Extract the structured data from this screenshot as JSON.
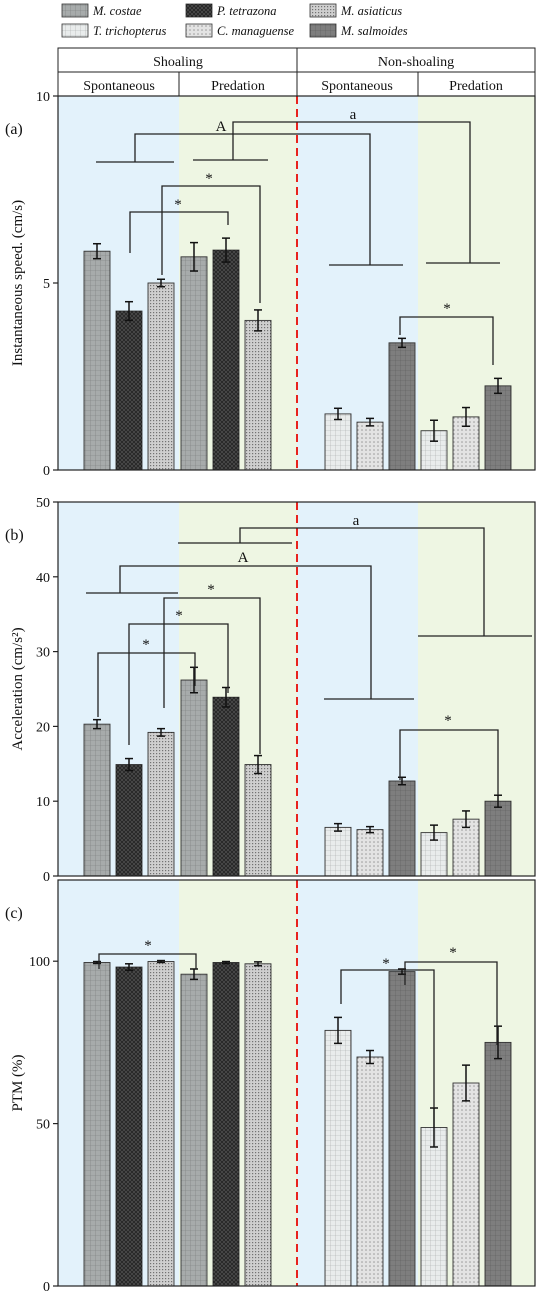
{
  "legend": {
    "entries": [
      {
        "label": "M. costae",
        "fill": "#a7abab",
        "pattern": "grid"
      },
      {
        "label": "P. tetrazona",
        "fill": "#4d4d4d",
        "pattern": "dark"
      },
      {
        "label": "M. asiaticus",
        "fill": "#cfcfcf",
        "pattern": "dense"
      },
      {
        "label": "T. trichopterus",
        "fill": "#e9ecec",
        "pattern": "grid"
      },
      {
        "label": "C. managuense",
        "fill": "#e3e3e3",
        "pattern": "dots"
      },
      {
        "label": "M. salmoides",
        "fill": "#7e7e7e",
        "pattern": "grid"
      }
    ]
  },
  "header": {
    "groups": [
      "Shoaling",
      "Non-shoaling"
    ],
    "conditions": [
      "Spontaneous",
      "Predation",
      "Spontaneous",
      "Predation"
    ]
  },
  "colors": {
    "spontaneous_bg": "#e3f2fb",
    "predation_bg": "#eef6e3",
    "divider": "#e8231d",
    "axis": "#222222"
  },
  "chart_data": [
    {
      "type": "bar",
      "panel_label": "(a)",
      "ylabel": "Instantaneous speed. (cm/s)",
      "ylim": [
        0,
        10
      ],
      "yticks": [
        0,
        5,
        10
      ],
      "groups": [
        "Shoaling Spontaneous",
        "Shoaling Predation",
        "Non-shoaling Spontaneous",
        "Non-shoaling Predation"
      ],
      "bars": [
        {
          "species": "M. costae",
          "condition": "Shoaling Spontaneous",
          "value": 5.85,
          "error": 0.2
        },
        {
          "species": "P. tetrazona",
          "condition": "Shoaling Spontaneous",
          "value": 4.25,
          "error": 0.25
        },
        {
          "species": "M. asiaticus",
          "condition": "Shoaling Spontaneous",
          "value": 5.0,
          "error": 0.1
        },
        {
          "species": "M. costae",
          "condition": "Shoaling Predation",
          "value": 5.7,
          "error": 0.38
        },
        {
          "species": "P. tetrazona",
          "condition": "Shoaling Predation",
          "value": 5.88,
          "error": 0.32
        },
        {
          "species": "M. asiaticus",
          "condition": "Shoaling Predation",
          "value": 4.0,
          "error": 0.28
        },
        {
          "species": "T. trichopterus",
          "condition": "Non-shoaling Spontaneous",
          "value": 1.5,
          "error": 0.15
        },
        {
          "species": "C. managuense",
          "condition": "Non-shoaling Spontaneous",
          "value": 1.28,
          "error": 0.1
        },
        {
          "species": "M. salmoides",
          "condition": "Non-shoaling Spontaneous",
          "value": 3.4,
          "error": 0.12
        },
        {
          "species": "T. trichopterus",
          "condition": "Non-shoaling Predation",
          "value": 1.05,
          "error": 0.28
        },
        {
          "species": "C. managuense",
          "condition": "Non-shoaling Predation",
          "value": 1.42,
          "error": 0.25
        },
        {
          "species": "M. salmoides",
          "condition": "Non-shoaling Predation",
          "value": 2.25,
          "error": 0.2
        }
      ],
      "significance_labels": [
        "A",
        "a",
        "*",
        "*",
        "*"
      ]
    },
    {
      "type": "bar",
      "panel_label": "(b)",
      "ylabel": "Acceleration (cm/s²)",
      "ylim": [
        0,
        50
      ],
      "yticks": [
        0,
        10,
        20,
        30,
        40,
        50
      ],
      "groups": [
        "Shoaling Spontaneous",
        "Shoaling Predation",
        "Non-shoaling Spontaneous",
        "Non-shoaling Predation"
      ],
      "bars": [
        {
          "species": "M. costae",
          "condition": "Shoaling Spontaneous",
          "value": 20.3,
          "error": 0.6
        },
        {
          "species": "P. tetrazona",
          "condition": "Shoaling Spontaneous",
          "value": 14.9,
          "error": 0.8
        },
        {
          "species": "M. asiaticus",
          "condition": "Shoaling Spontaneous",
          "value": 19.2,
          "error": 0.5
        },
        {
          "species": "M. costae",
          "condition": "Shoaling Predation",
          "value": 26.2,
          "error": 1.7
        },
        {
          "species": "P. tetrazona",
          "condition": "Shoaling Predation",
          "value": 23.9,
          "error": 1.3
        },
        {
          "species": "M. asiaticus",
          "condition": "Shoaling Predation",
          "value": 14.9,
          "error": 1.2
        },
        {
          "species": "T. trichopterus",
          "condition": "Non-shoaling Spontaneous",
          "value": 6.5,
          "error": 0.5
        },
        {
          "species": "C. managuense",
          "condition": "Non-shoaling Spontaneous",
          "value": 6.2,
          "error": 0.4
        },
        {
          "species": "M. salmoides",
          "condition": "Non-shoaling Spontaneous",
          "value": 12.7,
          "error": 0.5
        },
        {
          "species": "T. trichopterus",
          "condition": "Non-shoaling Predation",
          "value": 5.8,
          "error": 1.0
        },
        {
          "species": "C. managuense",
          "condition": "Non-shoaling Predation",
          "value": 7.6,
          "error": 1.1
        },
        {
          "species": "M. salmoides",
          "condition": "Non-shoaling Predation",
          "value": 10.0,
          "error": 0.8
        }
      ],
      "significance_labels": [
        "a",
        "A",
        "*",
        "*",
        "*",
        "*"
      ]
    },
    {
      "type": "bar",
      "panel_label": "(c)",
      "ylabel": "PTM (%)",
      "ylim": [
        0,
        125
      ],
      "yticks": [
        0,
        50,
        100
      ],
      "groups": [
        "Shoaling Spontaneous",
        "Shoaling Predation",
        "Non-shoaling Spontaneous",
        "Non-shoaling Predation"
      ],
      "bars": [
        {
          "species": "M. costae",
          "condition": "Shoaling Spontaneous",
          "value": 99.6,
          "error": 0.3
        },
        {
          "species": "P. tetrazona",
          "condition": "Shoaling Spontaneous",
          "value": 98.2,
          "error": 1.0
        },
        {
          "species": "M. asiaticus",
          "condition": "Shoaling Spontaneous",
          "value": 99.9,
          "error": 0.3
        },
        {
          "species": "M. costae",
          "condition": "Shoaling Predation",
          "value": 96.0,
          "error": 1.6
        },
        {
          "species": "P. tetrazona",
          "condition": "Shoaling Predation",
          "value": 99.6,
          "error": 0.3
        },
        {
          "species": "M. asiaticus",
          "condition": "Shoaling Predation",
          "value": 99.2,
          "error": 0.6
        },
        {
          "species": "T. trichopterus",
          "condition": "Non-shoaling Spontaneous",
          "value": 78.7,
          "error": 4.0
        },
        {
          "species": "C. managuense",
          "condition": "Non-shoaling Spontaneous",
          "value": 70.5,
          "error": 2.0
        },
        {
          "species": "M. salmoides",
          "condition": "Non-shoaling Spontaneous",
          "value": 96.8,
          "error": 0.8
        },
        {
          "species": "T. trichopterus",
          "condition": "Non-shoaling Predation",
          "value": 48.8,
          "error": 6.0
        },
        {
          "species": "C. managuense",
          "condition": "Non-shoaling Predation",
          "value": 62.5,
          "error": 5.5
        },
        {
          "species": "M. salmoides",
          "condition": "Non-shoaling Predation",
          "value": 75.0,
          "error": 5.0
        }
      ],
      "significance_labels": [
        "*",
        "*",
        "*"
      ]
    }
  ]
}
